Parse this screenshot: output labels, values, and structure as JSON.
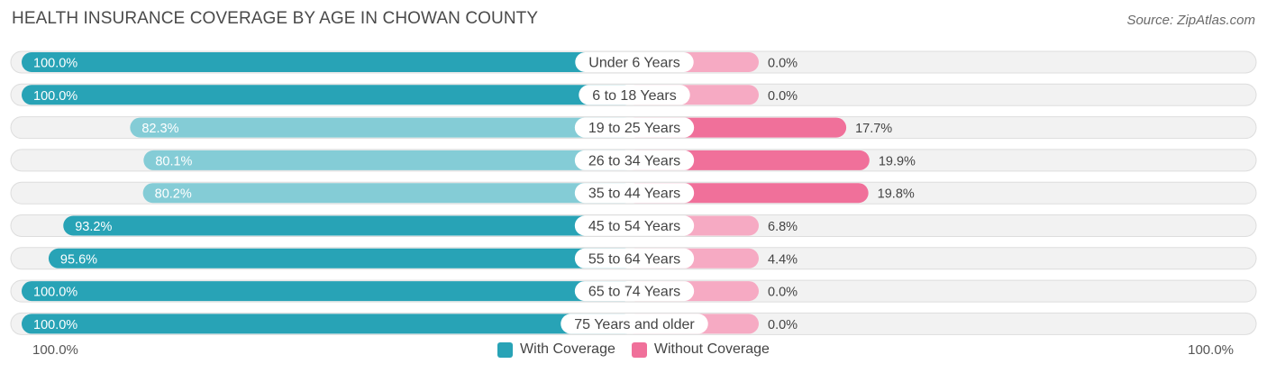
{
  "title": "HEALTH INSURANCE COVERAGE BY AGE IN CHOWAN COUNTY",
  "source": "Source: ZipAtlas.com",
  "colors": {
    "with_coverage_strong": "#28a3b6",
    "with_coverage_light": "#84ccd6",
    "without_coverage_strong": "#f0709a",
    "without_coverage_light": "#f6aac3",
    "row_bg": "#f2f2f2"
  },
  "axis": {
    "left_label": "100.0%",
    "right_label": "100.0%"
  },
  "legend": {
    "with": "With Coverage",
    "without": "Without Coverage"
  },
  "chart_data": {
    "type": "bar",
    "orientation": "diverging-horizontal",
    "title": "HEALTH INSURANCE COVERAGE BY AGE IN CHOWAN COUNTY",
    "categories": [
      "Under 6 Years",
      "6 to 18 Years",
      "19 to 25 Years",
      "26 to 34 Years",
      "35 to 44 Years",
      "45 to 54 Years",
      "55 to 64 Years",
      "65 to 74 Years",
      "75 Years and older"
    ],
    "series": [
      {
        "name": "With Coverage",
        "values": [
          100.0,
          100.0,
          82.3,
          80.1,
          80.2,
          93.2,
          95.6,
          100.0,
          100.0
        ],
        "labels": [
          "100.0%",
          "100.0%",
          "82.3%",
          "80.1%",
          "80.2%",
          "93.2%",
          "95.6%",
          "100.0%",
          "100.0%"
        ]
      },
      {
        "name": "Without Coverage",
        "values": [
          0.0,
          0.0,
          17.7,
          19.9,
          19.8,
          6.8,
          4.4,
          0.0,
          0.0
        ],
        "labels": [
          "0.0%",
          "0.0%",
          "17.7%",
          "19.9%",
          "19.8%",
          "6.8%",
          "4.4%",
          "0.0%",
          "0.0%"
        ]
      }
    ],
    "xlim": [
      0,
      100
    ],
    "legend_position": "bottom-center"
  }
}
